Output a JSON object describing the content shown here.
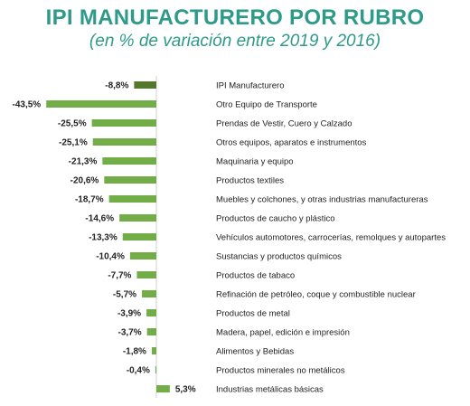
{
  "chart_data": {
    "type": "bar",
    "orientation": "horizontal",
    "title": "IPI MANUFACTURERO POR RUBRO",
    "subtitle": "(en % de variación entre 2019 y 2016)",
    "xlabel": "",
    "ylabel": "",
    "xlim": [
      -43.5,
      5.3
    ],
    "grid": false,
    "legend": "none",
    "colors": {
      "highlight": "#55792b",
      "bar": "#72ad47",
      "title": "#2d9a8a",
      "axis": "#b4b4b4"
    },
    "categories": [
      "IPI Manufacturero",
      "Otro Equipo de Transporte",
      "Prendas de Vestir, Cuero y Calzado",
      "Otros equipos, aparatos e instrumentos",
      "Maquinaria y equipo",
      "Productos textiles",
      "Muebles y colchones, y otras industrias manufactureras",
      "Productos de caucho y plástico",
      "Vehículos automotores, carrocerías, remolques y autopartes",
      "Sustancias y productos químicos",
      "Productos de tabaco",
      "Refinación de petróleo, coque y combustible nuclear",
      "Productos de metal",
      "Madera, papel, edición e impresión",
      "Alimentos y Bebidas",
      "Productos minerales no metálicos",
      "Industrias metálicas básicas"
    ],
    "values": [
      -8.8,
      -43.5,
      -25.5,
      -25.1,
      -21.3,
      -20.6,
      -18.7,
      -14.6,
      -13.3,
      -10.4,
      -7.7,
      -5.7,
      -3.9,
      -3.7,
      -1.8,
      -0.4,
      5.3
    ],
    "value_labels": [
      "-8,8%",
      "-43,5%",
      "-25,5%",
      "-25,1%",
      "-21,3%",
      "-20,6%",
      "-18,7%",
      "-14,6%",
      "-13,3%",
      "-10,4%",
      "-7,7%",
      "-5,7%",
      "-3,9%",
      "-3,7%",
      "-1,8%",
      "-0,4%",
      "5,3%"
    ],
    "highlight_index": 0
  }
}
